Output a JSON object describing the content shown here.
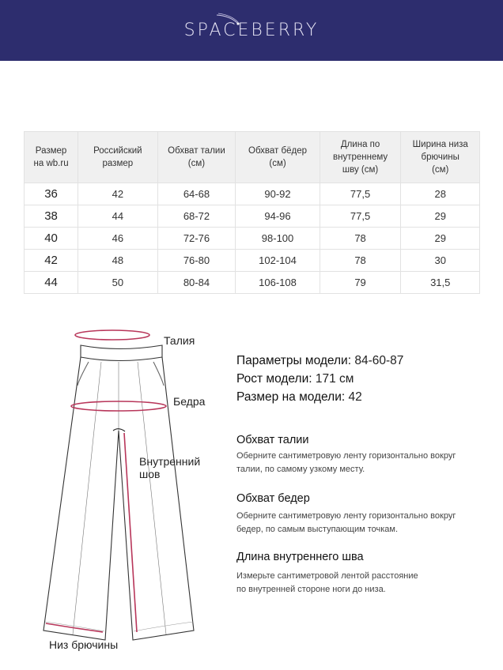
{
  "brand": {
    "logo": "SPACEBERRY",
    "colors": {
      "header": "#2d2d6e",
      "accent": "#b8365a"
    }
  },
  "table": {
    "headers": [
      "Размер\nна wb.ru",
      "Российский\nразмер",
      "Обхват талии\n(см)",
      "Обхват бёдер\n(см)",
      "Длина по\nвнутреннему\nшву (см)",
      "Ширина низа\nбрючины\n(см)"
    ],
    "rows": [
      [
        "36",
        "42",
        "64-68",
        "90-92",
        "77,5",
        "28"
      ],
      [
        "38",
        "44",
        "68-72",
        "94-96",
        "77,5",
        "29"
      ],
      [
        "40",
        "46",
        "72-76",
        "98-100",
        "78",
        "29"
      ],
      [
        "42",
        "48",
        "76-80",
        "102-104",
        "78",
        "30"
      ],
      [
        "44",
        "50",
        "80-84",
        "106-108",
        "79",
        "31,5"
      ]
    ]
  },
  "diagram": {
    "waist": "Талия",
    "hips": "Бедра",
    "inseam": "Внутренний\nшов",
    "hem": "Низ брючины"
  },
  "model": {
    "params_label": "Параметры модели:",
    "params_value": "84-60-87",
    "height_label": "Рост модели:",
    "height_value": "171 см",
    "size_label": "Размер на модели:",
    "size_value": "42"
  },
  "instructions": [
    {
      "title": "Обхват талии",
      "text": "Оберните сантиметровую ленту горизонтально вокруг\nталии, по самому узкому месту."
    },
    {
      "title": "Обхват бедер",
      "text": "Оберните сантиметровую ленту горизонтально вокруг\nбедер, по самым выступающим точкам."
    },
    {
      "title": "Длина внутреннего шва",
      "text": "Измерьте сантиметровой лентой расстояние\nпо внутренней стороне ноги до низа."
    }
  ]
}
